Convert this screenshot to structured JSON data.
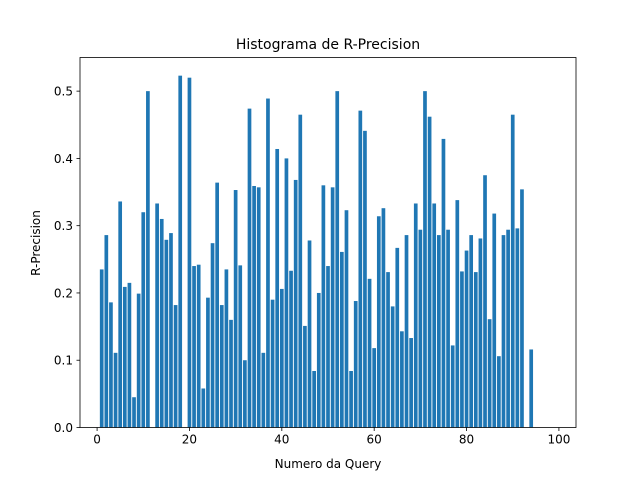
{
  "chart_data": {
    "type": "bar",
    "title": "Histograma de R-Precision",
    "xlabel": "Numero da Query",
    "ylabel": "R-Precision",
    "xlim": [
      -3.7,
      103.7
    ],
    "ylim": [
      0,
      0.55
    ],
    "xticks": [
      0,
      20,
      40,
      60,
      80,
      100
    ],
    "xtick_labels": [
      "0",
      "20",
      "40",
      "60",
      "80",
      "100"
    ],
    "yticks": [
      0.0,
      0.1,
      0.2,
      0.3,
      0.4,
      0.5
    ],
    "ytick_labels": [
      "0.0",
      "0.1",
      "0.2",
      "0.3",
      "0.4",
      "0.5"
    ],
    "bar_color": "#1f77b4",
    "grid": false,
    "x": [
      1,
      2,
      3,
      4,
      5,
      6,
      7,
      8,
      9,
      10,
      11,
      12,
      13,
      14,
      15,
      16,
      17,
      18,
      19,
      20,
      21,
      22,
      23,
      24,
      25,
      26,
      27,
      28,
      29,
      30,
      31,
      32,
      33,
      34,
      35,
      36,
      37,
      38,
      39,
      40,
      41,
      42,
      43,
      44,
      45,
      46,
      47,
      48,
      49,
      50,
      51,
      52,
      53,
      54,
      55,
      56,
      57,
      58,
      59,
      60,
      61,
      62,
      63,
      64,
      65,
      66,
      67,
      68,
      69,
      70,
      71,
      72,
      73,
      74,
      75,
      76,
      77,
      78,
      79,
      80,
      81,
      82,
      83,
      84,
      85,
      86,
      87,
      88,
      89,
      90,
      91,
      92,
      93,
      94
    ],
    "values": [
      0.235,
      0.286,
      0.186,
      0.111,
      0.336,
      0.209,
      0.215,
      0.045,
      0.199,
      0.32,
      0.5,
      0.0,
      0.333,
      0.31,
      0.279,
      0.289,
      0.182,
      0.523,
      0.0,
      0.52,
      0.24,
      0.242,
      0.058,
      0.193,
      0.274,
      0.364,
      0.182,
      0.235,
      0.16,
      0.353,
      0.241,
      0.1,
      0.474,
      0.359,
      0.357,
      0.111,
      0.489,
      0.19,
      0.414,
      0.206,
      0.4,
      0.233,
      0.368,
      0.465,
      0.151,
      0.278,
      0.084,
      0.2,
      0.36,
      0.24,
      0.357,
      0.5,
      0.261,
      0.323,
      0.084,
      0.188,
      0.471,
      0.441,
      0.221,
      0.118,
      0.314,
      0.326,
      0.231,
      0.18,
      0.267,
      0.143,
      0.286,
      0.133,
      0.333,
      0.294,
      0.5,
      0.462,
      0.333,
      0.286,
      0.429,
      0.294,
      0.122,
      0.338,
      0.232,
      0.263,
      0.286,
      0.231,
      0.281,
      0.375,
      0.161,
      0.318,
      0.106,
      0.286,
      0.294,
      0.465,
      0.296,
      0.354,
      0.0,
      0.116
    ]
  }
}
